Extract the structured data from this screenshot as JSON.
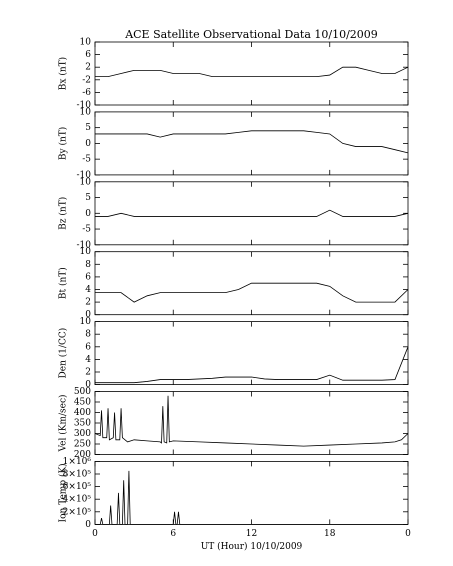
{
  "chart_data": [
    {
      "type": "line",
      "title": "ACE Satellite Observational Data   10/10/2009",
      "ylabel": "Bx (nT)",
      "xlim": [
        0,
        24
      ],
      "ylim": [
        -10,
        10
      ],
      "yticks": [
        -10,
        -6,
        -2,
        2,
        6,
        10
      ],
      "series": [
        {
          "color": "#000000",
          "x": [
            0,
            1,
            2,
            3,
            4,
            5,
            6,
            7,
            8,
            9,
            10,
            11,
            12,
            13,
            14,
            15,
            16,
            17,
            18,
            19,
            20,
            21,
            22,
            23,
            24
          ],
          "values": [
            -1,
            -1,
            0,
            1,
            1,
            1,
            0,
            0,
            0,
            -1,
            -1,
            -1,
            -1,
            -1,
            -1,
            -1,
            -1,
            -1,
            -0.5,
            2,
            2,
            1,
            0,
            0,
            2
          ]
        }
      ]
    },
    {
      "type": "line",
      "ylabel": "By (nT)",
      "xlim": [
        0,
        24
      ],
      "ylim": [
        -10,
        10
      ],
      "yticks": [
        -10,
        -5,
        0,
        5,
        10
      ],
      "series": [
        {
          "color": "#000000",
          "x": [
            0,
            1,
            2,
            3,
            4,
            5,
            6,
            7,
            8,
            9,
            10,
            11,
            12,
            13,
            14,
            15,
            16,
            17,
            18,
            19,
            20,
            21,
            22,
            23,
            24
          ],
          "values": [
            3,
            3,
            3,
            3,
            3,
            2,
            3,
            3,
            3,
            3,
            3,
            3.5,
            4,
            4,
            4,
            4,
            4,
            3.5,
            3,
            0,
            -1,
            -1,
            -1,
            -2,
            -3
          ]
        }
      ]
    },
    {
      "type": "line",
      "ylabel": "Bz (nT)",
      "xlim": [
        0,
        24
      ],
      "ylim": [
        -10,
        10
      ],
      "yticks": [
        -10,
        -5,
        0,
        5,
        10
      ],
      "series": [
        {
          "color": "#000000",
          "x": [
            0,
            1,
            2,
            3,
            4,
            5,
            6,
            7,
            8,
            9,
            10,
            11,
            12,
            13,
            14,
            15,
            16,
            17,
            18,
            19,
            20,
            21,
            22,
            23,
            24
          ],
          "values": [
            -1,
            -1,
            0,
            -1,
            -1,
            -1,
            -1,
            -1,
            -1,
            -1,
            -1,
            -1,
            -1,
            -1,
            -1,
            -1,
            -1,
            -1,
            1,
            -1,
            -1,
            -1,
            -1,
            -1,
            0
          ]
        }
      ]
    },
    {
      "type": "line",
      "ylabel": "Bt (nT)",
      "xlim": [
        0,
        24
      ],
      "ylim": [
        0,
        10
      ],
      "yticks": [
        0,
        2,
        4,
        6,
        8,
        10
      ],
      "series": [
        {
          "color": "#000000",
          "x": [
            0,
            1,
            2,
            3,
            4,
            5,
            6,
            7,
            8,
            9,
            10,
            11,
            12,
            13,
            14,
            15,
            16,
            17,
            18,
            19,
            20,
            21,
            22,
            23,
            24
          ],
          "values": [
            3.5,
            3.5,
            3.5,
            2,
            3,
            3.5,
            3.5,
            3.5,
            3.5,
            3.5,
            3.5,
            4,
            5,
            5,
            5,
            5,
            5,
            5,
            4.5,
            3,
            2,
            2,
            2,
            2,
            4
          ]
        }
      ]
    },
    {
      "type": "line",
      "ylabel": "Den (1/CC)",
      "xlim": [
        0,
        24
      ],
      "ylim": [
        0,
        10
      ],
      "yticks": [
        0,
        2,
        4,
        6,
        8,
        10
      ],
      "series": [
        {
          "color": "#000000",
          "x": [
            0,
            1,
            2,
            3,
            4,
            5,
            6,
            7,
            8,
            9,
            10,
            11,
            12,
            13,
            14,
            15,
            16,
            17,
            18,
            19,
            20,
            21,
            22,
            23,
            24
          ],
          "values": [
            0.3,
            0.3,
            0.3,
            0.3,
            0.5,
            0.8,
            0.8,
            0.8,
            0.9,
            1,
            1.2,
            1.2,
            1.2,
            0.9,
            0.8,
            0.8,
            0.8,
            0.8,
            1.5,
            0.7,
            0.7,
            0.7,
            0.7,
            0.8,
            6
          ]
        }
      ]
    },
    {
      "type": "line",
      "ylabel": "Vel (Km/sec)",
      "xlim": [
        0,
        24
      ],
      "ylim": [
        200,
        500
      ],
      "yticks": [
        200,
        250,
        300,
        350,
        400,
        450,
        500
      ],
      "series": [
        {
          "color": "#000000",
          "x": [
            0,
            0.4,
            0.5,
            0.6,
            0.9,
            1,
            1.1,
            1.4,
            1.5,
            1.6,
            1.9,
            2,
            2.1,
            2.5,
            3,
            4,
            5,
            5.1,
            5.2,
            5.3,
            5.5,
            5.6,
            5.7,
            6,
            8,
            10,
            12,
            14,
            16,
            18,
            20,
            22,
            23,
            23.5,
            24
          ],
          "values": [
            300,
            290,
            410,
            280,
            280,
            420,
            270,
            280,
            400,
            270,
            270,
            420,
            280,
            260,
            270,
            265,
            260,
            255,
            430,
            260,
            255,
            480,
            260,
            265,
            260,
            255,
            250,
            245,
            240,
            245,
            250,
            255,
            260,
            270,
            300
          ]
        }
      ]
    },
    {
      "type": "line",
      "ylabel": "Ion Temp (K)",
      "xlabel": "UT (Hour)   10/10/2009",
      "xlim": [
        0,
        24
      ],
      "ylim": [
        0,
        1000000
      ],
      "yticks": [
        0,
        {
          "value": 200000,
          "label": "2×10⁵"
        },
        {
          "value": 400000,
          "label": "4×10⁵"
        },
        {
          "value": 600000,
          "label": "6×10⁵"
        },
        {
          "value": 800000,
          "label": "8×10⁵"
        },
        {
          "value": 1000000,
          "label": "1×10⁶"
        }
      ],
      "xticks": [
        0,
        6,
        12,
        18,
        {
          "value": 24,
          "label": "0"
        }
      ],
      "series": [
        {
          "color": "#000000",
          "x": [
            0,
            0.4,
            0.5,
            0.6,
            1.1,
            1.2,
            1.3,
            1.7,
            1.8,
            1.9,
            2.1,
            2.2,
            2.3,
            2.5,
            2.6,
            2.7,
            3,
            6,
            6.1,
            6.2,
            6.3,
            6.4,
            6.5,
            12,
            18,
            24
          ],
          "values": [
            0,
            0,
            100000,
            0,
            0,
            300000,
            0,
            0,
            500000,
            0,
            0,
            700000,
            0,
            0,
            850000,
            0,
            0,
            0,
            200000,
            0,
            0,
            200000,
            0,
            0,
            0,
            0
          ]
        }
      ]
    }
  ]
}
